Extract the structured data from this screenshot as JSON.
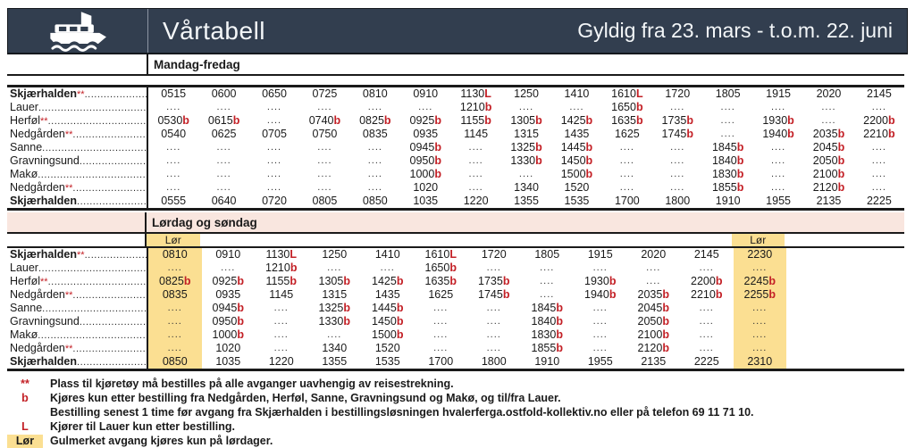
{
  "header": {
    "title": "Vårtabell",
    "validity": "Gyldig fra 23. mars - t.o.m. 22. juni"
  },
  "colors": {
    "header_bg": "#323e4f",
    "accent_red": "#c32026",
    "highlight_yellow": "#fbdf92",
    "band_pink": "#f9e6df"
  },
  "tables": [
    {
      "id": "weekday",
      "section_label": "Mandag-fredag",
      "lor_columns": [],
      "rows": [
        {
          "station": "Skjærhalden",
          "mark": "**",
          "bold": true,
          "times": [
            "0515",
            "0600",
            "0650",
            "0725",
            "0810",
            "0910",
            "1130L",
            "1250",
            "1410",
            "1610L",
            "1720",
            "1805",
            "1915",
            "2020",
            "2145"
          ]
        },
        {
          "station": "Lauer",
          "mark": "",
          "bold": false,
          "times": [
            "....",
            "....",
            "....",
            "....",
            "....",
            "....",
            "1210b",
            "....",
            "....",
            "1650b",
            "....",
            "....",
            "....",
            "....",
            "...."
          ]
        },
        {
          "station": "Herføl",
          "mark": "**",
          "bold": false,
          "times": [
            "0530b",
            "0615b",
            "....",
            "0740b",
            "0825b",
            "0925b",
            "1155b",
            "1305b",
            "1425b",
            "1635b",
            "1735b",
            "....",
            "1930b",
            "....",
            "2200b"
          ]
        },
        {
          "station": "Nedgården",
          "mark": "**",
          "bold": false,
          "times": [
            "0540",
            "0625",
            "0705",
            "0750",
            "0835",
            "0935",
            "1145",
            "1315",
            "1435",
            "1625",
            "1745b",
            "....",
            "1940b",
            "2035b",
            "2210b"
          ]
        },
        {
          "station": "Sanne",
          "mark": "",
          "bold": false,
          "times": [
            "....",
            "....",
            "....",
            "....",
            "....",
            "0945b",
            "....",
            "1325b",
            "1445b",
            "....",
            "....",
            "1845b",
            "....",
            "2045b",
            "...."
          ]
        },
        {
          "station": "Gravningsund",
          "mark": "",
          "bold": false,
          "times": [
            "....",
            "....",
            "....",
            "....",
            "....",
            "0950b",
            "....",
            "1330b",
            "1450b",
            "....",
            "....",
            "1840b",
            "....",
            "2050b",
            "...."
          ]
        },
        {
          "station": "Makø",
          "mark": "",
          "bold": false,
          "times": [
            "....",
            "....",
            "....",
            "....",
            "....",
            "1000b",
            "....",
            "....",
            "1500b",
            "....",
            "....",
            "1830b",
            "....",
            "2100b",
            "...."
          ]
        },
        {
          "station": "Nedgården",
          "mark": "**",
          "bold": false,
          "times": [
            "....",
            "....",
            "....",
            "....",
            "....",
            "1020",
            "....",
            "1340",
            "1520",
            "....",
            "....",
            "1855b",
            "....",
            "2120b",
            "...."
          ]
        },
        {
          "station": "Skjærhalden",
          "mark": "",
          "bold": true,
          "times": [
            "0555",
            "0640",
            "0720",
            "0805",
            "0850",
            "1035",
            "1220",
            "1355",
            "1535",
            "1700",
            "1800",
            "1910",
            "1955",
            "2135",
            "2225"
          ]
        }
      ]
    },
    {
      "id": "weekend",
      "section_label": "Lørdag og søndag",
      "lor_label": "Lør",
      "lor_columns": [
        0,
        11
      ],
      "rows": [
        {
          "station": "Skjærhalden",
          "mark": "**",
          "bold": true,
          "times": [
            "0810",
            "0910",
            "1130L",
            "1250",
            "1410",
            "1610L",
            "1720",
            "1805",
            "1915",
            "2020",
            "2145",
            "2230"
          ]
        },
        {
          "station": "Lauer",
          "mark": "",
          "bold": false,
          "times": [
            "....",
            "....",
            "1210b",
            "....",
            "....",
            "1650b",
            "....",
            "....",
            "....",
            "....",
            "....",
            "...."
          ]
        },
        {
          "station": "Herføl",
          "mark": "**",
          "bold": false,
          "times": [
            "0825b",
            "0925b",
            "1155b",
            "1305b",
            "1425b",
            "1635b",
            "1735b",
            "....",
            "1930b",
            "....",
            "2200b",
            "2245b"
          ]
        },
        {
          "station": "Nedgården",
          "mark": "**",
          "bold": false,
          "times": [
            "0835",
            "0935",
            "1145",
            "1315",
            "1435",
            "1625",
            "1745b",
            "....",
            "1940b",
            "2035b",
            "2210b",
            "2255b"
          ]
        },
        {
          "station": "Sanne",
          "mark": "",
          "bold": false,
          "times": [
            "....",
            "0945b",
            "....",
            "1325b",
            "1445b",
            "....",
            "....",
            "1845b",
            "....",
            "2045b",
            "....",
            "...."
          ]
        },
        {
          "station": "Gravningsund",
          "mark": "",
          "bold": false,
          "times": [
            "....",
            "0950b",
            "....",
            "1330b",
            "1450b",
            "....",
            "....",
            "1840b",
            "....",
            "2050b",
            "....",
            "...."
          ]
        },
        {
          "station": "Makø",
          "mark": "",
          "bold": false,
          "times": [
            "....",
            "1000b",
            "....",
            "....",
            "1500b",
            "....",
            "....",
            "1830b",
            "....",
            "2100b",
            "....",
            "...."
          ]
        },
        {
          "station": "Nedgården",
          "mark": "**",
          "bold": false,
          "times": [
            "....",
            "1020",
            "....",
            "1340",
            "1520",
            "....",
            "....",
            "1855b",
            "....",
            "2120b",
            "....",
            "...."
          ]
        },
        {
          "station": "Skjærhalden",
          "mark": "",
          "bold": true,
          "times": [
            "0850",
            "1035",
            "1220",
            "1355",
            "1535",
            "1700",
            "1800",
            "1910",
            "1955",
            "2135",
            "2225",
            "2310"
          ]
        }
      ]
    }
  ],
  "footnotes": [
    {
      "symbol": "**",
      "style": "red",
      "lines": [
        "Plass til kjøretøy må bestilles på alle avganger uavhengig av reisestrekning."
      ]
    },
    {
      "symbol": "b",
      "style": "red",
      "lines": [
        "Kjøres kun etter bestilling fra Nedgården, Herføl, Sanne, Gravningsund og Makø, og til/fra Lauer.",
        "Bestilling senest 1 time før avgang fra Skjærhalden i bestillingsløsningen hvalerferga.ostfold-kollektiv.no eller på telefon 69 11 71 10."
      ]
    },
    {
      "symbol": "L",
      "style": "red",
      "lines": [
        "Kjører til Lauer kun etter bestilling."
      ]
    },
    {
      "symbol": "Lør",
      "style": "yellow",
      "lines": [
        "Gulmerket avgang kjøres kun på lørdager."
      ]
    }
  ]
}
